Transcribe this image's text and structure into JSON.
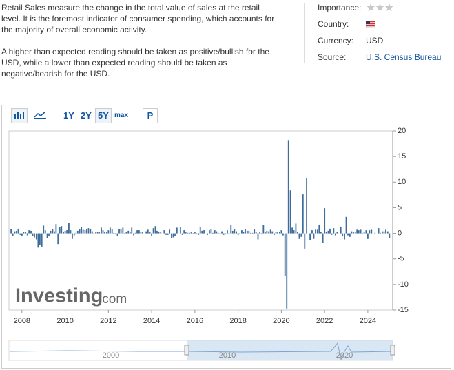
{
  "description": [
    "Retail Sales measure the change in the total value of sales at the retail level. It is the foremost indicator of consumer spending, which accounts for the majority of overall economic activity.",
    "A higher than expected reading should be taken as positive/bullish for the USD, while a lower than expected reading should be taken as negative/bearish for the USD."
  ],
  "details": {
    "importance_label": "Importance:",
    "country_label": "Country:",
    "currency_label": "Currency:",
    "currency": "USD",
    "source_label": "Source:",
    "source": "U.S. Census Bureau"
  },
  "toolbar": {
    "ranges": [
      "1Y",
      "2Y",
      "5Y",
      "max"
    ],
    "pan": "P"
  },
  "watermark": {
    "brand": "Investing",
    "suffix": ".com"
  },
  "navigator": {
    "labels": [
      "2000",
      "2010",
      "2020"
    ]
  },
  "chart_data": {
    "type": "bar",
    "color": "#3f6d9b",
    "x": [
      2007.5,
      2007.58,
      2007.67,
      2007.75,
      2007.83,
      2007.92,
      2008,
      2008.08,
      2008.17,
      2008.25,
      2008.33,
      2008.42,
      2008.5,
      2008.58,
      2008.67,
      2008.75,
      2008.83,
      2008.92,
      2009,
      2009.08,
      2009.17,
      2009.25,
      2009.33,
      2009.42,
      2009.5,
      2009.58,
      2009.67,
      2009.75,
      2009.83,
      2009.92,
      2010,
      2010.08,
      2010.17,
      2010.25,
      2010.33,
      2010.42,
      2010.5,
      2010.58,
      2010.67,
      2010.75,
      2010.83,
      2010.92,
      2011,
      2011.08,
      2011.17,
      2011.25,
      2011.33,
      2011.42,
      2011.5,
      2011.58,
      2011.67,
      2011.75,
      2011.83,
      2011.92,
      2012,
      2012.08,
      2012.17,
      2012.25,
      2012.33,
      2012.42,
      2012.5,
      2012.58,
      2012.67,
      2012.75,
      2012.83,
      2012.92,
      2013,
      2013.08,
      2013.17,
      2013.25,
      2013.33,
      2013.42,
      2013.5,
      2013.58,
      2013.67,
      2013.75,
      2013.83,
      2013.92,
      2014,
      2014.08,
      2014.17,
      2014.25,
      2014.33,
      2014.42,
      2014.5,
      2014.58,
      2014.67,
      2014.75,
      2014.83,
      2014.92,
      2015,
      2015.08,
      2015.17,
      2015.25,
      2015.33,
      2015.42,
      2015.5,
      2015.58,
      2015.67,
      2015.75,
      2015.83,
      2015.92,
      2016,
      2016.08,
      2016.17,
      2016.25,
      2016.33,
      2016.42,
      2016.5,
      2016.58,
      2016.67,
      2016.75,
      2016.83,
      2016.92,
      2017,
      2017.08,
      2017.17,
      2017.25,
      2017.33,
      2017.42,
      2017.5,
      2017.58,
      2017.67,
      2017.75,
      2017.83,
      2017.92,
      2018,
      2018.08,
      2018.17,
      2018.25,
      2018.33,
      2018.42,
      2018.5,
      2018.58,
      2018.67,
      2018.75,
      2018.83,
      2018.92,
      2019,
      2019.08,
      2019.17,
      2019.25,
      2019.33,
      2019.42,
      2019.5,
      2019.58,
      2019.67,
      2019.75,
      2019.83,
      2019.92,
      2020,
      2020.08,
      2020.17,
      2020.25,
      2020.33,
      2020.42,
      2020.5,
      2020.58,
      2020.67,
      2020.75,
      2020.83,
      2020.92,
      2021,
      2021.08,
      2021.17,
      2021.25,
      2021.33,
      2021.42,
      2021.5,
      2021.58,
      2021.67,
      2021.75,
      2021.83,
      2021.92,
      2022,
      2022.08,
      2022.17,
      2022.25,
      2022.33,
      2022.42,
      2022.5,
      2022.58,
      2022.67,
      2022.75,
      2022.83,
      2022.92,
      2023,
      2023.08,
      2023.17,
      2023.25,
      2023.33,
      2023.42,
      2023.5,
      2023.58,
      2023.67,
      2023.75,
      2023.83,
      2023.92,
      2024,
      2024.08,
      2024.17,
      2024.25,
      2024.33,
      2024.42,
      2024.5,
      2024.58,
      2024.67,
      2024.75,
      2024.83,
      2024.92,
      2025
    ],
    "values": [
      0.8,
      -0.6,
      0.4,
      0.5,
      0.9,
      -0.3,
      -0.5,
      0.3,
      0.2,
      -0.4,
      0.6,
      0.5,
      -0.6,
      -0.8,
      -1.2,
      -2.8,
      -2.3,
      -2.6,
      1.5,
      0.6,
      -1.0,
      -0.5,
      0.5,
      0.8,
      0.4,
      1.8,
      -2.1,
      1.2,
      1.4,
      0.2,
      0.5,
      0.6,
      2.0,
      0.6,
      -1.1,
      -0.4,
      0.1,
      0.5,
      0.8,
      1.2,
      0.7,
      0.6,
      0.8,
      1.0,
      0.8,
      0.4,
      -0.1,
      0.3,
      0.3,
      0.2,
      1.1,
      0.6,
      0.3,
      0.2,
      0.6,
      1.1,
      0.8,
      0.1,
      -0.2,
      -0.5,
      0.8,
      0.9,
      1.1,
      -0.1,
      0.3,
      0.5,
      0.2,
      1.1,
      -0.4,
      0.1,
      0.6,
      0.6,
      0.2,
      0.2,
      0.0,
      0.4,
      0.7,
      0.2,
      -0.6,
      1.0,
      1.4,
      0.5,
      0.3,
      0.2,
      0.0,
      0.6,
      -0.3,
      -0.3,
      0.7,
      -0.9,
      -0.8,
      -0.6,
      1.1,
      0.0,
      1.2,
      -0.3,
      0.6,
      0.2,
      0.1,
      0.1,
      0.2,
      -0.1,
      0.2,
      -0.2,
      -0.3,
      1.3,
      0.5,
      0.6,
      0.0,
      -0.3,
      0.6,
      0.8,
      0.1,
      0.6,
      0.4,
      0.1,
      -0.2,
      0.4,
      -0.3,
      -0.2,
      0.6,
      -0.2,
      1.6,
      0.5,
      0.8,
      0.4,
      -0.3,
      -0.1,
      0.6,
      0.3,
      0.8,
      0.5,
      0.5,
      0.1,
      0.1,
      0.8,
      0.2,
      -1.2,
      0.2,
      -0.2,
      1.6,
      0.3,
      0.5,
      0.4,
      0.7,
      0.4,
      -0.3,
      0.3,
      0.2,
      0.3,
      0.6,
      -0.4,
      -8.3,
      -14.7,
      18.2,
      8.4,
      1.1,
      0.6,
      1.9,
      0.3,
      -1.1,
      -0.7,
      7.6,
      -3.0,
      10.7,
      0.0,
      -1.3,
      0.6,
      -1.1,
      0.7,
      0.7,
      1.7,
      0.3,
      -1.9,
      4.9,
      0.3,
      0.5,
      0.9,
      -0.3,
      1.0,
      -0.4,
      0.3,
      0.0,
      1.3,
      -0.6,
      -1.2,
      3.2,
      -0.4,
      -0.7,
      0.4,
      0.3,
      0.2,
      0.7,
      0.6,
      0.7,
      -0.1,
      0.3,
      0.6,
      -1.1,
      0.6,
      0.7,
      0.0,
      0.1,
      0.0,
      1.0,
      0.1,
      0.4,
      0.4,
      0.7,
      0.4,
      -0.9
    ],
    "xlim": [
      2007.4,
      2025.15
    ],
    "xticks": [
      2008,
      2010,
      2012,
      2014,
      2016,
      2018,
      2020,
      2022,
      2024
    ],
    "ylim": [
      -15,
      20
    ],
    "yticks": [
      -15,
      -10,
      -5,
      0,
      5,
      10,
      15,
      20
    ]
  }
}
